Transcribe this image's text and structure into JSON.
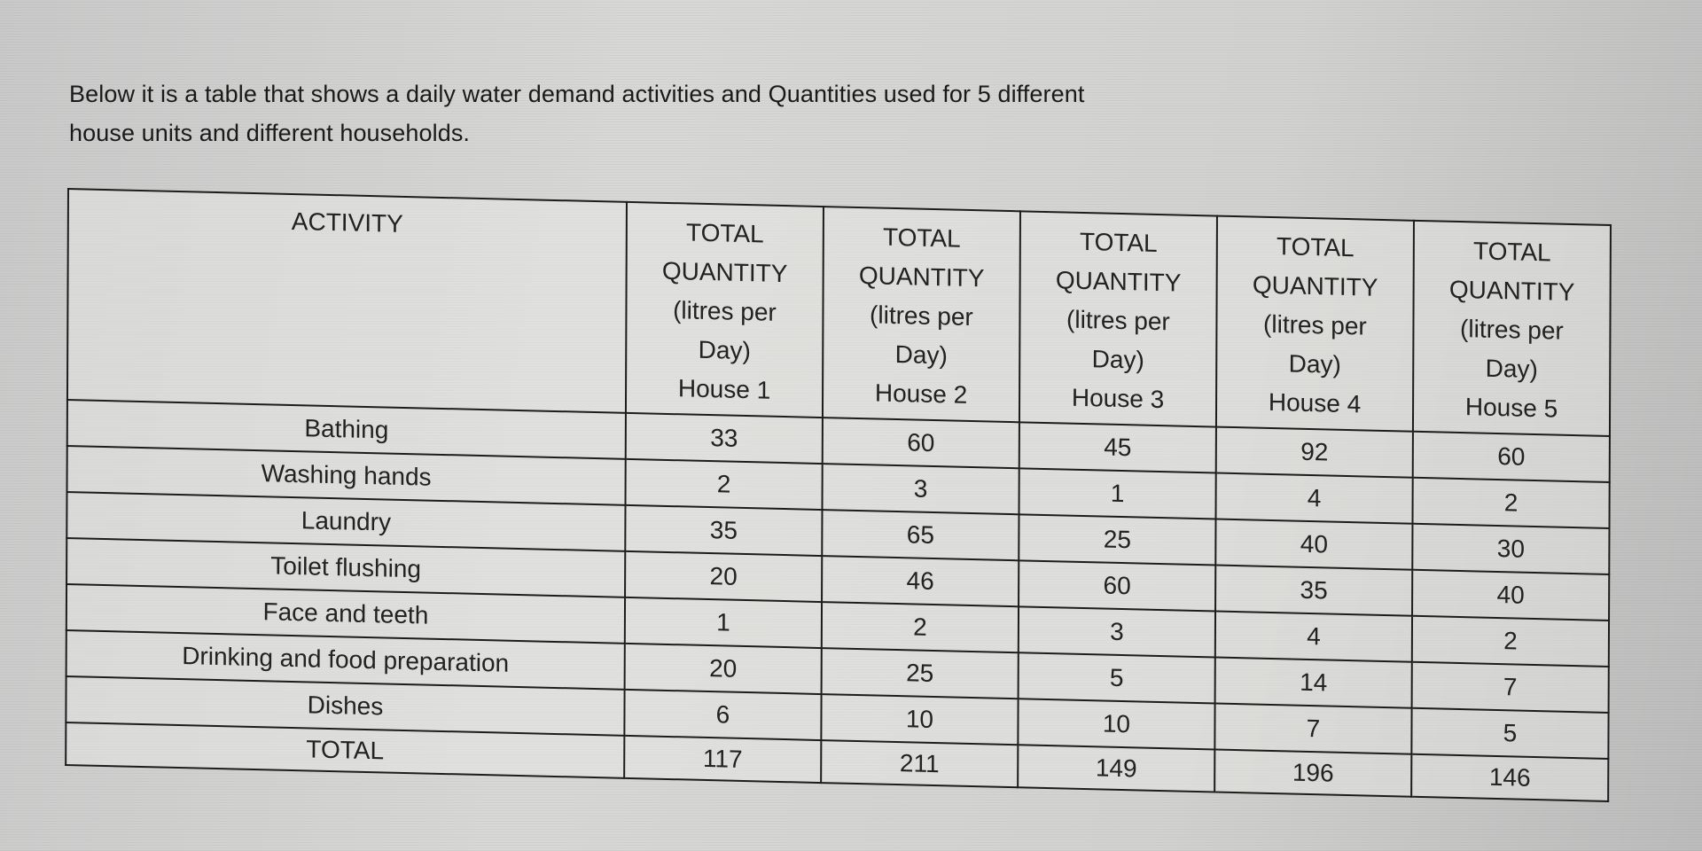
{
  "intro": {
    "line1": "Below it is a table that shows a daily water demand activities and Quantities used for 5 different",
    "line2": "house units and different households."
  },
  "table": {
    "activity_header": "ACTIVITY",
    "columns": [
      {
        "l1": "TOTAL",
        "l2": "QUANTITY",
        "l3": "(litres per",
        "l4": "Day)",
        "house": "House 1"
      },
      {
        "l1": "TOTAL",
        "l2": "QUANTITY",
        "l3": "(litres per",
        "l4": "Day)",
        "house": "House 2"
      },
      {
        "l1": "TOTAL",
        "l2": "QUANTITY",
        "l3": "(litres per",
        "l4": "Day)",
        "house": "House 3"
      },
      {
        "l1": "TOTAL",
        "l2": "QUANTITY",
        "l3": "(litres per",
        "l4": "Day)",
        "house": "House 4"
      },
      {
        "l1": "TOTAL",
        "l2": "QUANTITY",
        "l3": "(litres per",
        "l4": "Day)",
        "house": "House 5"
      }
    ],
    "rows": [
      {
        "activity": "Bathing",
        "values": [
          "33",
          "60",
          "45",
          "92",
          "60"
        ]
      },
      {
        "activity": "Washing hands",
        "values": [
          "2",
          "3",
          "1",
          "4",
          "2"
        ]
      },
      {
        "activity": "Laundry",
        "values": [
          "35",
          "65",
          "25",
          "40",
          "30"
        ]
      },
      {
        "activity": "Toilet flushing",
        "values": [
          "20",
          "46",
          "60",
          "35",
          "40"
        ]
      },
      {
        "activity": "Face and teeth",
        "values": [
          "1",
          "2",
          "3",
          "4",
          "2"
        ]
      },
      {
        "activity": "Drinking and food preparation",
        "values": [
          "20",
          "25",
          "5",
          "14",
          "7"
        ]
      },
      {
        "activity": "Dishes",
        "values": [
          "6",
          "10",
          "10",
          "7",
          "5"
        ]
      }
    ],
    "total": {
      "label": "TOTAL",
      "values": [
        "117",
        "211",
        "149",
        "196",
        "146"
      ]
    }
  }
}
